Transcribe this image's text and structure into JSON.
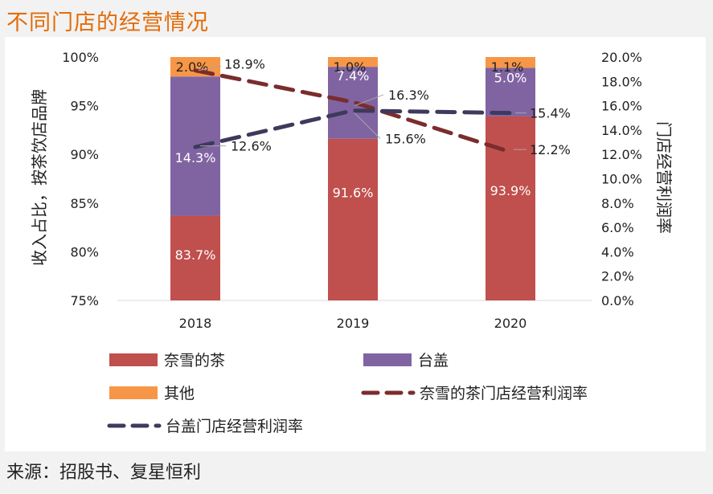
{
  "title": "不同门店的经营情况",
  "source": "来源：招股书、复星恒利",
  "chart_data": {
    "type": "bar",
    "stacked": true,
    "title": "不同门店的经营情况",
    "categories": [
      "2018",
      "2019",
      "2020"
    ],
    "ylabel": "收入占比，按茶饮店品牌",
    "y2label": "门店经营利润率",
    "ylim": [
      75,
      100
    ],
    "y2lim": [
      0,
      20
    ],
    "y_ticks": [
      "75%",
      "80%",
      "85%",
      "90%",
      "95%",
      "100%"
    ],
    "y2_ticks": [
      "0.0%",
      "2.0%",
      "4.0%",
      "6.0%",
      "8.0%",
      "10.0%",
      "12.0%",
      "14.0%",
      "16.0%",
      "18.0%",
      "20.0%"
    ],
    "series": [
      {
        "name": "奈雪的茶",
        "kind": "bar",
        "color": "#c0504d",
        "values": [
          83.7,
          91.6,
          93.9
        ],
        "labels": [
          "83.7%",
          "91.6%",
          "93.9%"
        ]
      },
      {
        "name": "台盖",
        "kind": "bar",
        "color": "#8064a2",
        "values": [
          14.3,
          7.4,
          5.0
        ],
        "labels": [
          "14.3%",
          "7.4%",
          "5.0%"
        ]
      },
      {
        "name": "其他",
        "kind": "bar",
        "color": "#f79646",
        "values": [
          2.0,
          1.0,
          1.1
        ],
        "labels": [
          "2.0%",
          "1.0%",
          "1.1%"
        ]
      },
      {
        "name": "奈雪的茶门店经营利润率",
        "kind": "line",
        "axis": "y2",
        "color": "#7b2c2c",
        "values": [
          18.9,
          16.3,
          12.2
        ],
        "labels": [
          "18.9%",
          "16.3%",
          "12.2%"
        ]
      },
      {
        "name": "台盖门店经营利润率",
        "kind": "line",
        "axis": "y2",
        "color": "#3d3a5c",
        "values": [
          12.6,
          15.6,
          15.4
        ],
        "labels": [
          "12.6%",
          "15.6%",
          "15.4%"
        ]
      }
    ],
    "legend": [
      "奈雪的茶",
      "台盖",
      "其他",
      "奈雪的茶门店经营利润率",
      "台盖门店经营利润率"
    ]
  }
}
